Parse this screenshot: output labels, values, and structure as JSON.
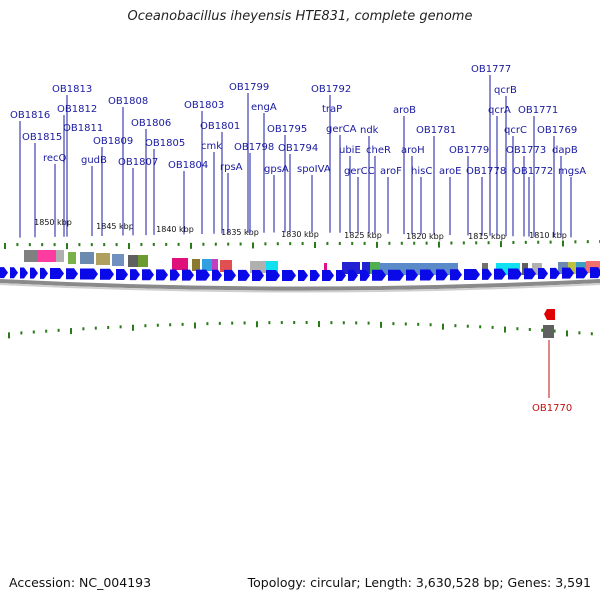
{
  "title": "Oceanobacillus iheyensis HTE831, complete genome",
  "footer": {
    "accession": "Accession: NC_004193",
    "summary": "Topology: circular; Length: 3,630,528 bp; Genes: 3,591"
  },
  "colors": {
    "forward_gene": "#0a0ae8",
    "reverse_gene": "#e00000",
    "forward_label": "#1a1aa0",
    "reverse_label": "#c01010",
    "tick": "#2a7a1a",
    "backbone": "#8a8a8a"
  },
  "scale_ticks": [
    "1850 kbp",
    "1845 kbp",
    "1840 kbp",
    "1835 kbp",
    "1830 kbp",
    "1825 kbp",
    "1820 kbp",
    "1815 kbp",
    "1810 kbp"
  ],
  "forward_labels": [
    "OB1816",
    "OB1815",
    "OB1813",
    "OB1812",
    "OB1811",
    "recQ",
    "OB1809",
    "gudB",
    "OB1808",
    "OB1807",
    "OB1806",
    "OB1805",
    "OB1804",
    "OB1803",
    "cmk",
    "OB1801",
    "rpsA",
    "OB1799",
    "OB1798",
    "engA",
    "gpsA",
    "OB1795",
    "OB1794",
    "spoIVA",
    "OB1792",
    "traP",
    "gerCA",
    "ubiE",
    "gerCC",
    "ndk",
    "cheR",
    "aroF",
    "aroB",
    "aroH",
    "hisC",
    "OB1781",
    "aroE",
    "OB1779",
    "OB1778",
    "OB1777",
    "qcrB",
    "qcrA",
    "qcrC",
    "OB1773",
    "OB1772",
    "OB1771",
    "OB1769",
    "dapB",
    "mgsA"
  ],
  "reverse_labels": [
    "OB1770"
  ]
}
